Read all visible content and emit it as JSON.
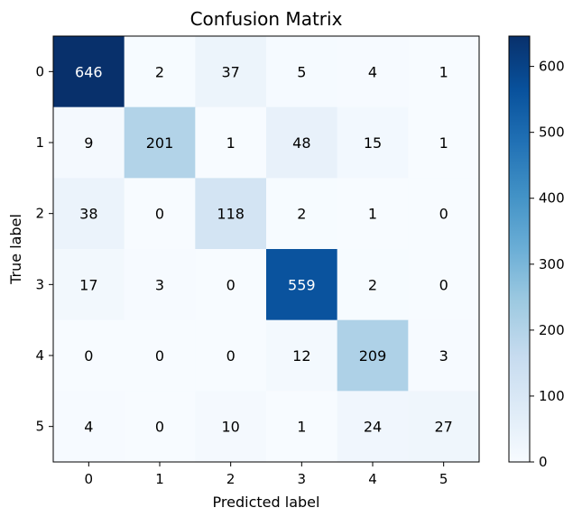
{
  "chart_data": {
    "type": "heatmap",
    "title": "Confusion Matrix",
    "xlabel": "Predicted label",
    "ylabel": "True label",
    "x_categories": [
      "0",
      "1",
      "2",
      "3",
      "4",
      "5"
    ],
    "y_categories": [
      "0",
      "1",
      "2",
      "3",
      "4",
      "5"
    ],
    "matrix": [
      [
        646,
        2,
        37,
        5,
        4,
        1
      ],
      [
        9,
        201,
        1,
        48,
        15,
        1
      ],
      [
        38,
        0,
        118,
        2,
        1,
        0
      ],
      [
        17,
        3,
        0,
        559,
        2,
        0
      ],
      [
        0,
        0,
        0,
        12,
        209,
        3
      ],
      [
        4,
        0,
        10,
        1,
        24,
        27
      ]
    ],
    "colormap": "Blues",
    "vmin": 0,
    "vmax": 646,
    "colorbar_ticks": [
      "0",
      "100",
      "200",
      "300",
      "400",
      "500",
      "600"
    ],
    "colors": {
      "low": "#f7fbff",
      "high": "#08306b"
    }
  }
}
